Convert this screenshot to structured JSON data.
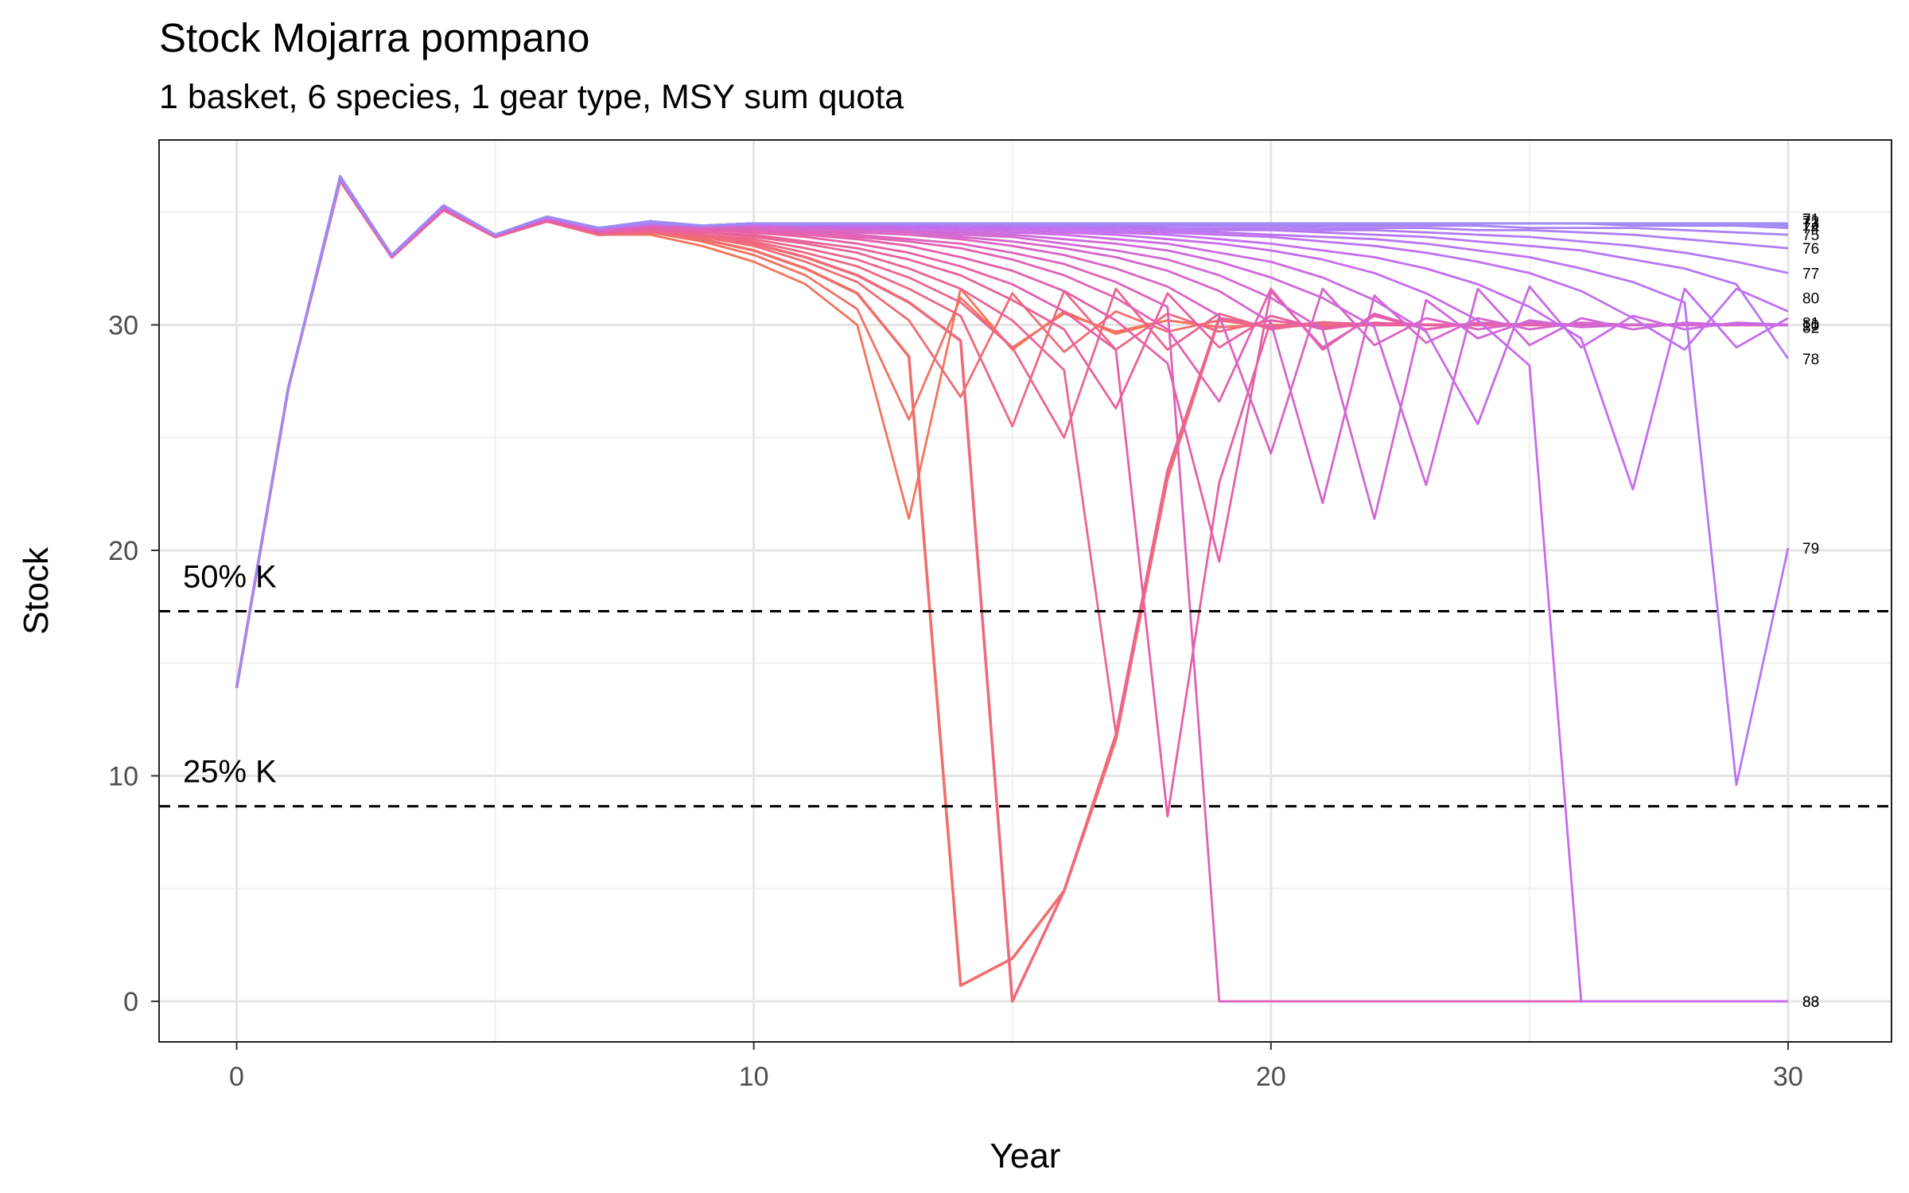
{
  "chart_data": {
    "type": "line",
    "title": "Stock Mojarra pompano",
    "subtitle": "1 basket, 6 species, 1 gear type, MSY sum quota",
    "xlabel": "Year",
    "ylabel": "Stock",
    "xlim": [
      -1.5,
      32
    ],
    "ylim": [
      -1.8,
      38.2
    ],
    "x_ticks": [
      "0",
      "10",
      "20",
      "30"
    ],
    "y_ticks": [
      "0",
      "10",
      "20",
      "30"
    ],
    "grid": true,
    "legend": "none",
    "color_range": [
      "#f4745a",
      "#e85ea6",
      "#c56cf0",
      "#9b8cf5"
    ],
    "reference_lines": [
      {
        "label": "50% K",
        "y": 17.3
      },
      {
        "label": "25% K",
        "y": 8.65
      }
    ],
    "base_path": [
      13.9,
      27.2,
      36.6,
      33.1,
      35.3,
      34.0,
      34.8,
      34.3,
      34.6,
      34.4,
      34.5,
      34.45,
      34.5,
      34.5,
      34.5,
      34.5,
      34.5,
      34.5,
      34.5,
      34.5,
      34.5,
      34.5,
      34.5,
      34.5,
      34.5,
      34.5,
      34.5,
      34.5,
      34.5,
      34.5,
      34.5
    ],
    "series": [
      {
        "label": "",
        "values": [
          13.9,
          27.2,
          36.4,
          33.0,
          35.1,
          33.9,
          34.6,
          34.0,
          34.0,
          33.5,
          32.8,
          31.8,
          30.0,
          21.4,
          31.6,
          28.9,
          30.6,
          29.6,
          30.2,
          29.9,
          30.0,
          30.0,
          30.0,
          30.0,
          30.0,
          30.0,
          30.0,
          30.0,
          30.0,
          30.0,
          30.0
        ]
      },
      {
        "label": "",
        "values": [
          13.9,
          27.2,
          36.4,
          33.0,
          35.1,
          33.9,
          34.6,
          34.0,
          34.1,
          33.7,
          33.1,
          32.2,
          30.7,
          25.8,
          31.2,
          29.0,
          30.5,
          29.7,
          30.2,
          29.9,
          30.0,
          30.0,
          30.0,
          30.0,
          30.0,
          30.0,
          30.0,
          30.0,
          30.0,
          30.0,
          30.0
        ]
      },
      {
        "label": "",
        "values": [
          13.9,
          27.2,
          36.4,
          33.0,
          35.1,
          33.9,
          34.6,
          34.0,
          34.1,
          33.8,
          33.3,
          32.5,
          31.4,
          28.6,
          0.7,
          1.9,
          4.9,
          11.6,
          23.2,
          30.3,
          29.9,
          30.1,
          30.0,
          30.0,
          30.0,
          30.0,
          30.0,
          30.0,
          30.0,
          30.0,
          30.0
        ]
      },
      {
        "label": "",
        "values": [
          13.9,
          27.2,
          36.4,
          33.0,
          35.1,
          33.9,
          34.6,
          34.0,
          34.1,
          33.9,
          33.5,
          32.8,
          31.9,
          30.2,
          26.8,
          31.4,
          28.8,
          30.6,
          29.7,
          30.2,
          29.9,
          30.0,
          30.0,
          30.0,
          30.0,
          30.0,
          30.0,
          30.0,
          30.0,
          30.0,
          30.0
        ]
      },
      {
        "label": "",
        "values": [
          13.9,
          27.2,
          36.4,
          33.0,
          35.1,
          33.9,
          34.6,
          34.0,
          34.1,
          33.9,
          33.6,
          33.0,
          32.2,
          31.0,
          29.3,
          0.0,
          4.9,
          11.8,
          23.5,
          30.3,
          29.9,
          30.1,
          30.0,
          30.0,
          30.0,
          30.0,
          30.0,
          30.0,
          30.0,
          30.0,
          30.0
        ]
      },
      {
        "label": "",
        "values": [
          13.9,
          27.2,
          36.4,
          33.0,
          35.1,
          33.9,
          34.6,
          34.0,
          34.1,
          34.0,
          33.7,
          33.2,
          32.6,
          31.6,
          30.4,
          25.5,
          31.5,
          28.9,
          30.5,
          29.7,
          30.2,
          29.9,
          30.0,
          30.0,
          30.0,
          30.0,
          30.0,
          30.0,
          30.0,
          30.0,
          30.0
        ]
      },
      {
        "label": "",
        "values": [
          13.9,
          27.2,
          36.4,
          33.0,
          35.1,
          33.9,
          34.6,
          34.1,
          34.2,
          34.0,
          33.8,
          33.4,
          32.9,
          32.1,
          31.0,
          29.0,
          25.0,
          31.6,
          28.9,
          30.5,
          29.8,
          30.1,
          30.0,
          30.0,
          30.0,
          30.0,
          30.0,
          30.0,
          30.0,
          30.0,
          30.0
        ]
      },
      {
        "label": "",
        "values": [
          13.9,
          27.2,
          36.4,
          33.0,
          35.1,
          33.9,
          34.6,
          34.1,
          34.2,
          34.1,
          33.9,
          33.6,
          33.2,
          32.5,
          31.6,
          30.2,
          28.0,
          11.9,
          23.5,
          30.3,
          29.9,
          30.1,
          30.0,
          30.0,
          30.0,
          30.0,
          30.0,
          30.0,
          30.0,
          30.0,
          30.0
        ]
      },
      {
        "label": "",
        "values": [
          13.9,
          27.2,
          36.4,
          33.0,
          35.1,
          33.9,
          34.6,
          34.1,
          34.2,
          34.1,
          34.0,
          33.7,
          33.4,
          32.9,
          32.2,
          31.1,
          29.8,
          26.3,
          31.4,
          29.0,
          30.4,
          29.8,
          30.1,
          30.0,
          30.0,
          30.0,
          30.0,
          30.0,
          30.0,
          30.0,
          30.0
        ]
      },
      {
        "label": "",
        "values": [
          13.9,
          27.2,
          36.5,
          33.0,
          35.2,
          33.9,
          34.7,
          34.1,
          34.3,
          34.2,
          34.1,
          33.9,
          33.6,
          33.2,
          32.6,
          31.8,
          30.6,
          28.9,
          8.2,
          23.0,
          30.2,
          29.9,
          30.0,
          30.0,
          30.0,
          30.0,
          30.0,
          30.0,
          30.0,
          30.0,
          30.0
        ]
      },
      {
        "label": "",
        "values": [
          13.9,
          27.2,
          36.5,
          33.0,
          35.2,
          33.9,
          34.7,
          34.1,
          34.3,
          34.2,
          34.2,
          34.0,
          33.8,
          33.5,
          33.0,
          32.4,
          31.5,
          30.2,
          28.3,
          19.5,
          31.5,
          29.0,
          30.4,
          29.8,
          30.1,
          30.0,
          30.0,
          30.0,
          30.0,
          30.0,
          30.0
        ]
      },
      {
        "label": "",
        "values": [
          13.9,
          27.2,
          36.5,
          33.0,
          35.2,
          34.0,
          34.7,
          34.2,
          34.4,
          34.3,
          34.2,
          34.1,
          33.9,
          33.7,
          33.4,
          32.9,
          32.2,
          31.2,
          29.8,
          26.6,
          31.6,
          28.9,
          30.5,
          29.8,
          30.1,
          30.0,
          30.0,
          30.0,
          30.0,
          30.0,
          30.0
        ]
      },
      {
        "label": "",
        "values": [
          13.9,
          27.2,
          36.5,
          33.0,
          35.2,
          34.0,
          34.7,
          34.2,
          34.4,
          34.3,
          34.3,
          34.2,
          34.0,
          33.8,
          33.6,
          33.2,
          32.7,
          31.9,
          30.8,
          0.0,
          0.0,
          0.0,
          0.0,
          0.0,
          0.0,
          0.0,
          0.0,
          0.0,
          0.0,
          0.0,
          0.0
        ]
      },
      {
        "label": "",
        "values": [
          13.9,
          27.2,
          36.5,
          33.1,
          35.2,
          34.0,
          34.7,
          34.2,
          34.4,
          34.3,
          34.3,
          34.2,
          34.1,
          34.0,
          33.8,
          33.5,
          33.1,
          32.5,
          31.7,
          30.4,
          24.3,
          31.6,
          29.1,
          30.3,
          29.8,
          30.1,
          30.0,
          30.0,
          30.0,
          30.0,
          30.0
        ]
      },
      {
        "label": "",
        "values": [
          13.9,
          27.2,
          36.5,
          33.1,
          35.2,
          34.0,
          34.7,
          34.2,
          34.4,
          34.4,
          34.4,
          34.3,
          34.2,
          34.1,
          33.9,
          33.7,
          33.4,
          33.0,
          32.4,
          31.5,
          30.1,
          22.1,
          31.3,
          29.2,
          30.3,
          29.8,
          30.1,
          30.0,
          30.0,
          30.0,
          30.0
        ]
      },
      {
        "label": "",
        "values": [
          13.9,
          27.2,
          36.5,
          33.1,
          35.2,
          34.0,
          34.7,
          34.2,
          34.4,
          34.4,
          34.4,
          34.3,
          34.3,
          34.2,
          34.0,
          33.9,
          33.6,
          33.3,
          32.9,
          32.2,
          31.2,
          29.8,
          21.4,
          31.1,
          29.4,
          30.2,
          29.9,
          30.0,
          30.0,
          30.0,
          30.0
        ]
      },
      {
        "label": "",
        "values": [
          13.9,
          27.2,
          36.5,
          33.1,
          35.3,
          34.0,
          34.8,
          34.3,
          34.5,
          34.4,
          34.4,
          34.4,
          34.3,
          34.2,
          34.1,
          34.0,
          33.8,
          33.6,
          33.3,
          32.8,
          32.1,
          31.2,
          29.9,
          22.9,
          31.6,
          29.1,
          30.3,
          29.8,
          30.1,
          30.0,
          30.0
        ]
      },
      {
        "label": "",
        "values": [
          13.9,
          27.2,
          36.5,
          33.1,
          35.3,
          34.0,
          34.8,
          34.3,
          34.5,
          34.4,
          34.4,
          34.4,
          34.3,
          34.3,
          34.2,
          34.1,
          34.0,
          33.8,
          33.6,
          33.2,
          32.8,
          32.1,
          31.1,
          29.7,
          25.6,
          31.7,
          29.0,
          30.4,
          29.8,
          30.1,
          30.0
        ]
      },
      {
        "label": "",
        "values": [
          13.9,
          27.2,
          36.5,
          33.1,
          35.3,
          34.0,
          34.8,
          34.3,
          34.5,
          34.4,
          34.5,
          34.4,
          34.4,
          34.3,
          34.3,
          34.2,
          34.1,
          34.0,
          33.8,
          33.6,
          33.3,
          32.9,
          32.3,
          31.4,
          30.2,
          28.2,
          0.0,
          0.0,
          0.0,
          0.0,
          0.0
        ]
      },
      {
        "label": "",
        "values": [
          13.9,
          27.2,
          36.5,
          33.1,
          35.3,
          34.0,
          34.8,
          34.3,
          34.5,
          34.4,
          34.5,
          34.4,
          34.4,
          34.4,
          34.3,
          34.3,
          34.2,
          34.1,
          34.0,
          33.8,
          33.6,
          33.3,
          33.0,
          32.5,
          31.8,
          30.8,
          29.4,
          22.7,
          31.6,
          29.0,
          30.3
        ]
      },
      {
        "label": "80",
        "values": [
          13.9,
          27.2,
          36.5,
          33.1,
          35.3,
          34.0,
          34.8,
          34.3,
          34.5,
          34.4,
          34.5,
          34.4,
          34.4,
          34.4,
          34.4,
          34.3,
          34.3,
          34.2,
          34.1,
          34.0,
          33.9,
          33.7,
          33.5,
          33.2,
          32.8,
          32.3,
          31.5,
          30.3,
          28.9,
          31.6,
          30.6
        ]
      },
      {
        "label": "79",
        "values": [
          13.9,
          27.2,
          36.5,
          33.1,
          35.3,
          34.0,
          34.8,
          34.3,
          34.5,
          34.4,
          34.5,
          34.5,
          34.4,
          34.4,
          34.4,
          34.4,
          34.3,
          34.3,
          34.2,
          34.1,
          34.0,
          33.9,
          33.8,
          33.6,
          33.3,
          33.0,
          32.5,
          31.9,
          31.0,
          9.6,
          20.1
        ]
      },
      {
        "label": "78",
        "values": [
          13.9,
          27.2,
          36.5,
          33.1,
          35.3,
          34.0,
          34.8,
          34.3,
          34.5,
          34.4,
          34.5,
          34.5,
          34.5,
          34.4,
          34.4,
          34.4,
          34.4,
          34.3,
          34.3,
          34.2,
          34.2,
          34.1,
          34.0,
          33.9,
          33.7,
          33.5,
          33.3,
          32.9,
          32.5,
          31.8,
          28.5
        ]
      },
      {
        "label": "77",
        "values": [
          13.9,
          27.2,
          36.5,
          33.1,
          35.3,
          34.0,
          34.8,
          34.3,
          34.5,
          34.4,
          34.5,
          34.5,
          34.5,
          34.5,
          34.4,
          34.4,
          34.4,
          34.4,
          34.3,
          34.3,
          34.3,
          34.2,
          34.2,
          34.1,
          34.0,
          33.9,
          33.7,
          33.5,
          33.2,
          32.8,
          32.3
        ]
      },
      {
        "label": "76",
        "values": [
          13.9,
          27.2,
          36.5,
          33.1,
          35.3,
          34.0,
          34.8,
          34.3,
          34.5,
          34.4,
          34.5,
          34.5,
          34.5,
          34.5,
          34.5,
          34.5,
          34.4,
          34.4,
          34.4,
          34.4,
          34.4,
          34.3,
          34.3,
          34.3,
          34.2,
          34.2,
          34.1,
          34.0,
          33.8,
          33.6,
          33.4
        ]
      },
      {
        "label": "75",
        "values": [
          13.9,
          27.2,
          36.5,
          33.1,
          35.3,
          34.0,
          34.8,
          34.3,
          34.5,
          34.4,
          34.5,
          34.5,
          34.5,
          34.5,
          34.5,
          34.5,
          34.5,
          34.5,
          34.5,
          34.4,
          34.4,
          34.4,
          34.4,
          34.4,
          34.4,
          34.3,
          34.3,
          34.3,
          34.2,
          34.1,
          34.0
        ]
      },
      {
        "label": "",
        "values": [
          13.9,
          27.2,
          36.6,
          33.1,
          35.3,
          34.0,
          34.8,
          34.3,
          34.6,
          34.4,
          34.5,
          34.5,
          34.5,
          34.5,
          34.5,
          34.5,
          34.5,
          34.5,
          34.5,
          34.5,
          34.5,
          34.5,
          34.5,
          34.5,
          34.5,
          34.5,
          34.5,
          34.4,
          34.4,
          34.4,
          34.3
        ]
      },
      {
        "label": "",
        "values": [
          13.9,
          27.2,
          36.6,
          33.1,
          35.3,
          34.0,
          34.8,
          34.3,
          34.6,
          34.4,
          34.5,
          34.5,
          34.5,
          34.5,
          34.5,
          34.5,
          34.5,
          34.5,
          34.5,
          34.5,
          34.5,
          34.5,
          34.5,
          34.5,
          34.5,
          34.5,
          34.5,
          34.5,
          34.5,
          34.5,
          34.4
        ]
      },
      {
        "label": "",
        "values": [
          13.9,
          27.2,
          36.6,
          33.1,
          35.3,
          34.0,
          34.8,
          34.3,
          34.6,
          34.4,
          34.5,
          34.45,
          34.5,
          34.5,
          34.5,
          34.5,
          34.5,
          34.5,
          34.5,
          34.5,
          34.5,
          34.5,
          34.5,
          34.5,
          34.5,
          34.5,
          34.5,
          34.5,
          34.5,
          34.5,
          34.5
        ]
      }
    ],
    "end_labels": [
      {
        "text": "80",
        "y": 31.2
      },
      {
        "text": "81",
        "y": 30.1
      },
      {
        "text": "82",
        "y": 29.9
      },
      {
        "text": "10",
        "y": 30.0
      },
      {
        "text": "78",
        "y": 28.5
      },
      {
        "text": "79",
        "y": 20.1
      },
      {
        "text": "77",
        "y": 32.3
      },
      {
        "text": "76",
        "y": 33.4
      },
      {
        "text": "75",
        "y": 34.0
      },
      {
        "text": "74",
        "y": 34.3
      },
      {
        "text": "73",
        "y": 34.5
      },
      {
        "text": "72",
        "y": 34.6
      },
      {
        "text": "71",
        "y": 34.7
      },
      {
        "text": "88",
        "y": 0.0
      },
      {
        "text": "83",
        "y": 0.0
      }
    ]
  }
}
